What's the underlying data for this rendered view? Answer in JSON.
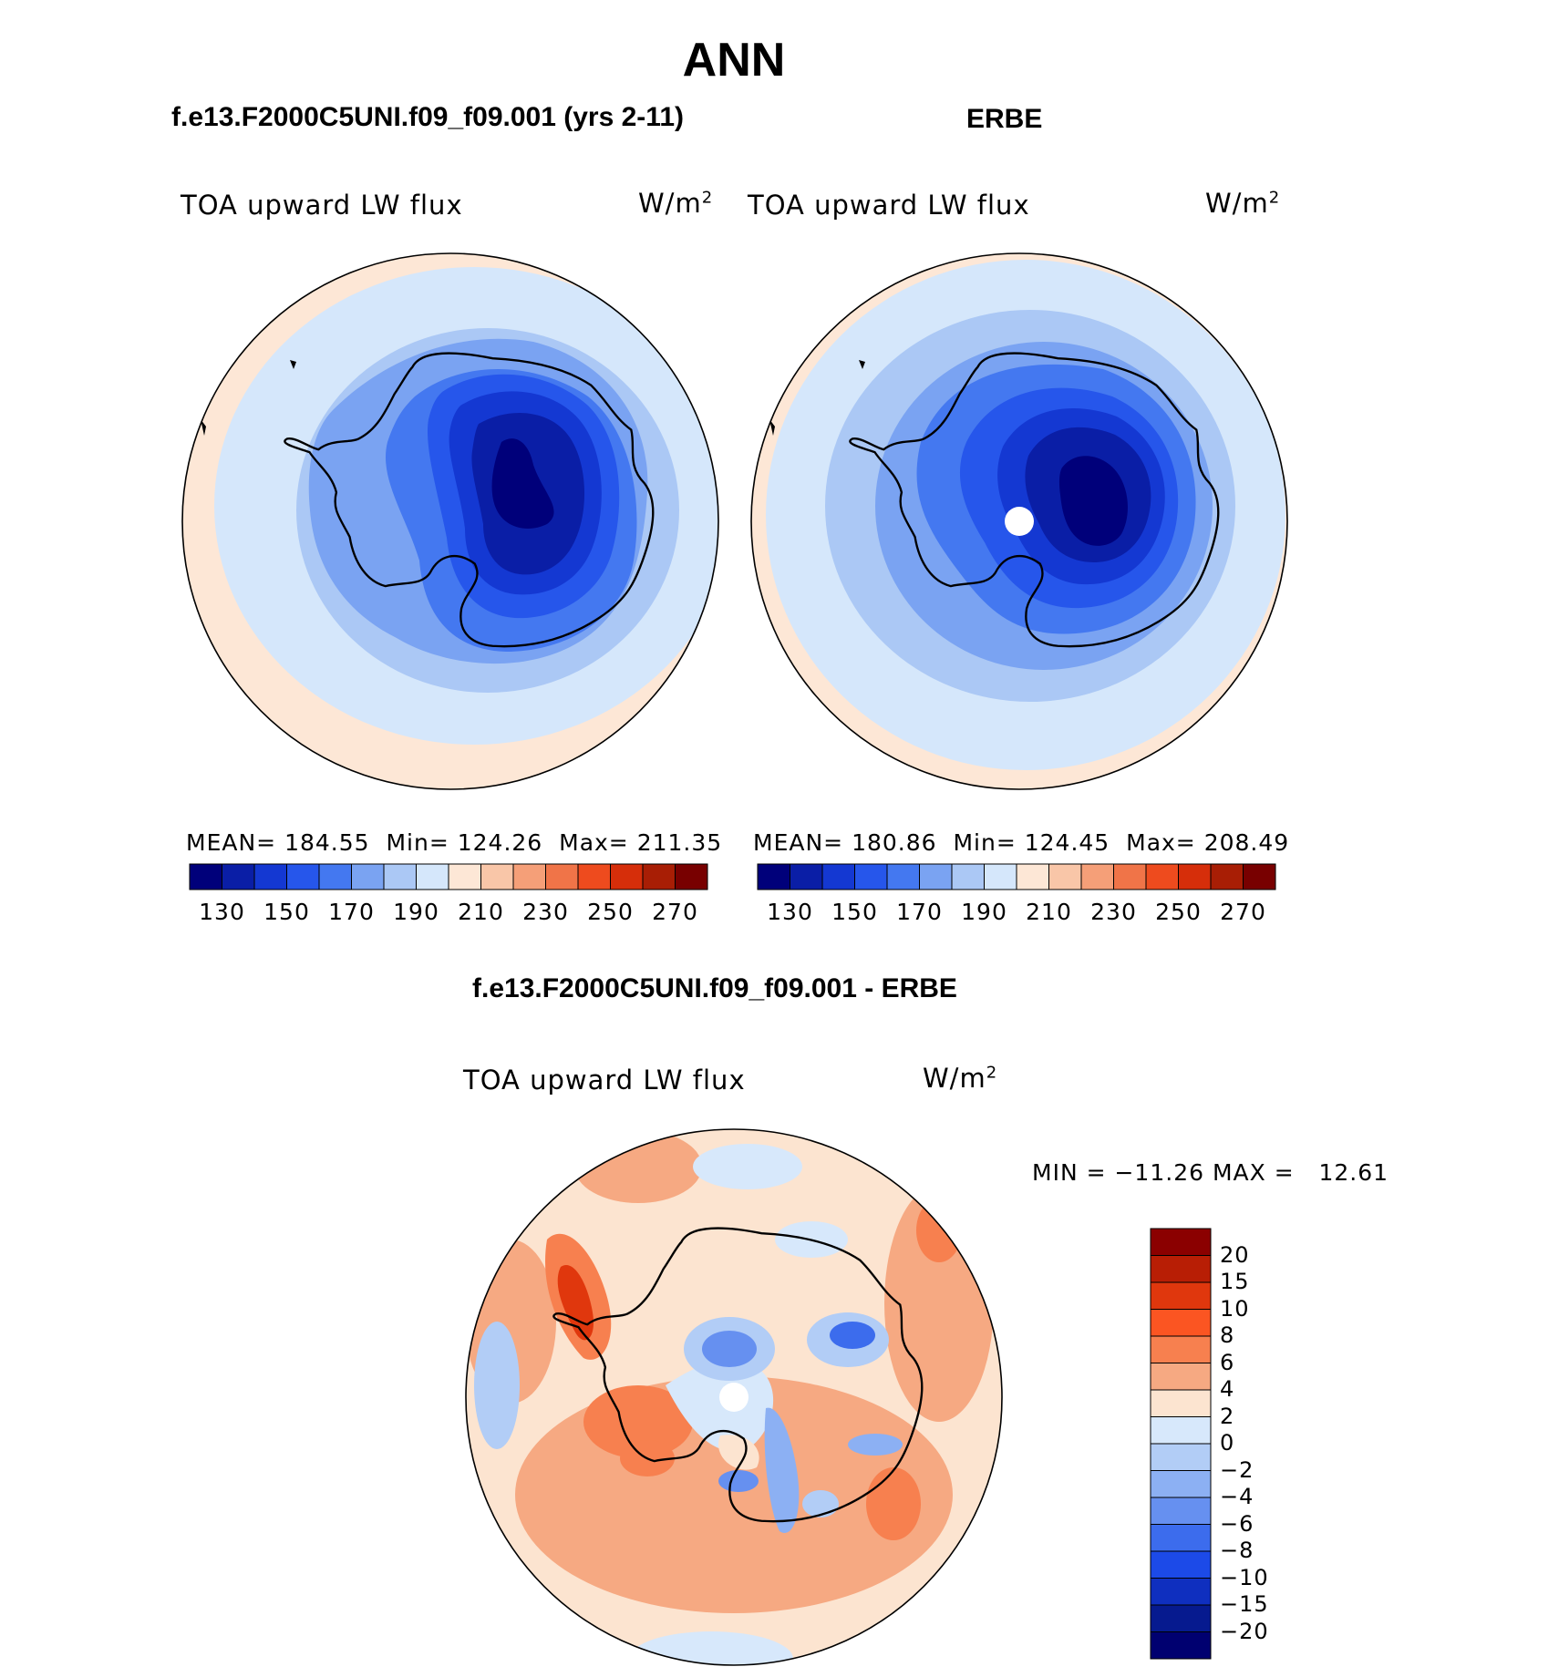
{
  "figure": {
    "main_title": "ANN",
    "panel1_title": "f.e13.F2000C5UNI.f09_f09.001 (yrs 2-11)",
    "panel2_title": "ERBE",
    "diff_title": "f.e13.F2000C5UNI.f09_f09.001 - ERBE"
  },
  "panels": [
    {
      "variable": "TOA upward LW flux",
      "units_base": "W/m",
      "units_exp": "2",
      "mean_label": "MEAN=",
      "mean_value": "184.55",
      "min_label": "Min=",
      "min_value": "124.26",
      "max_label": "Max=",
      "max_value": "211.35"
    },
    {
      "variable": "TOA upward LW flux",
      "units_base": "W/m",
      "units_exp": "2",
      "mean_label": "MEAN=",
      "mean_value": "180.86",
      "min_label": "Min=",
      "min_value": "124.45",
      "max_label": "Max=",
      "max_value": "208.49"
    },
    {
      "variable": "TOA upward LW flux",
      "units_base": "W/m",
      "units_exp": "2",
      "minmax_text": "MIN = −11.26 MAX =   12.61"
    }
  ],
  "colorbar_abs": {
    "tick_labels": [
      "130",
      "150",
      "170",
      "190",
      "210",
      "230",
      "250",
      "270"
    ],
    "colors": [
      "#00007a",
      "#0a1ea6",
      "#1438d2",
      "#2656eb",
      "#4478f0",
      "#7aa3f2",
      "#abc8f5",
      "#d5e7fb",
      "#fde7d6",
      "#f9c6a8",
      "#f59f78",
      "#f07448",
      "#ee4b1e",
      "#d62e0a",
      "#a81e05",
      "#780000"
    ]
  },
  "colorbar_diff": {
    "tick_labels": [
      "20",
      "15",
      "10",
      "8",
      "6",
      "4",
      "2",
      "0",
      "−2",
      "−4",
      "−6",
      "−8",
      "−10",
      "−15",
      "−20"
    ],
    "colors": [
      "#8b0000",
      "#b81e05",
      "#e0370d",
      "#fb5522",
      "#f7804f",
      "#f6a982",
      "#fce4d0",
      "#d7e8fb",
      "#b2cdf6",
      "#8cb0f3",
      "#6690f0",
      "#3c6ced",
      "#1c4ae8",
      "#0f2fbf",
      "#061a8f",
      "#000070"
    ]
  },
  "chart_data": [
    {
      "type": "heatmap",
      "title": "f.e13.F2000C5UNI.f09_f09.001 (yrs 2-11)",
      "projection": "south polar stereographic",
      "variable": "TOA upward LW flux",
      "units": "W/m2",
      "levels": [
        130,
        140,
        150,
        160,
        170,
        180,
        190,
        200,
        210,
        220,
        230,
        240,
        250,
        260,
        270
      ],
      "mean": 184.55,
      "min": 124.26,
      "max": 211.35
    },
    {
      "type": "heatmap",
      "title": "ERBE",
      "projection": "south polar stereographic",
      "variable": "TOA upward LW flux",
      "units": "W/m2",
      "levels": [
        130,
        140,
        150,
        160,
        170,
        180,
        190,
        200,
        210,
        220,
        230,
        240,
        250,
        260,
        270
      ],
      "mean": 180.86,
      "min": 124.45,
      "max": 208.49
    },
    {
      "type": "heatmap",
      "title": "f.e13.F2000C5UNI.f09_f09.001 - ERBE",
      "projection": "south polar stereographic",
      "variable": "TOA upward LW flux",
      "units": "W/m2",
      "levels": [
        -20,
        -15,
        -10,
        -8,
        -6,
        -4,
        -2,
        0,
        2,
        4,
        6,
        8,
        10,
        15,
        20
      ],
      "min": -11.26,
      "max": 12.61
    }
  ]
}
